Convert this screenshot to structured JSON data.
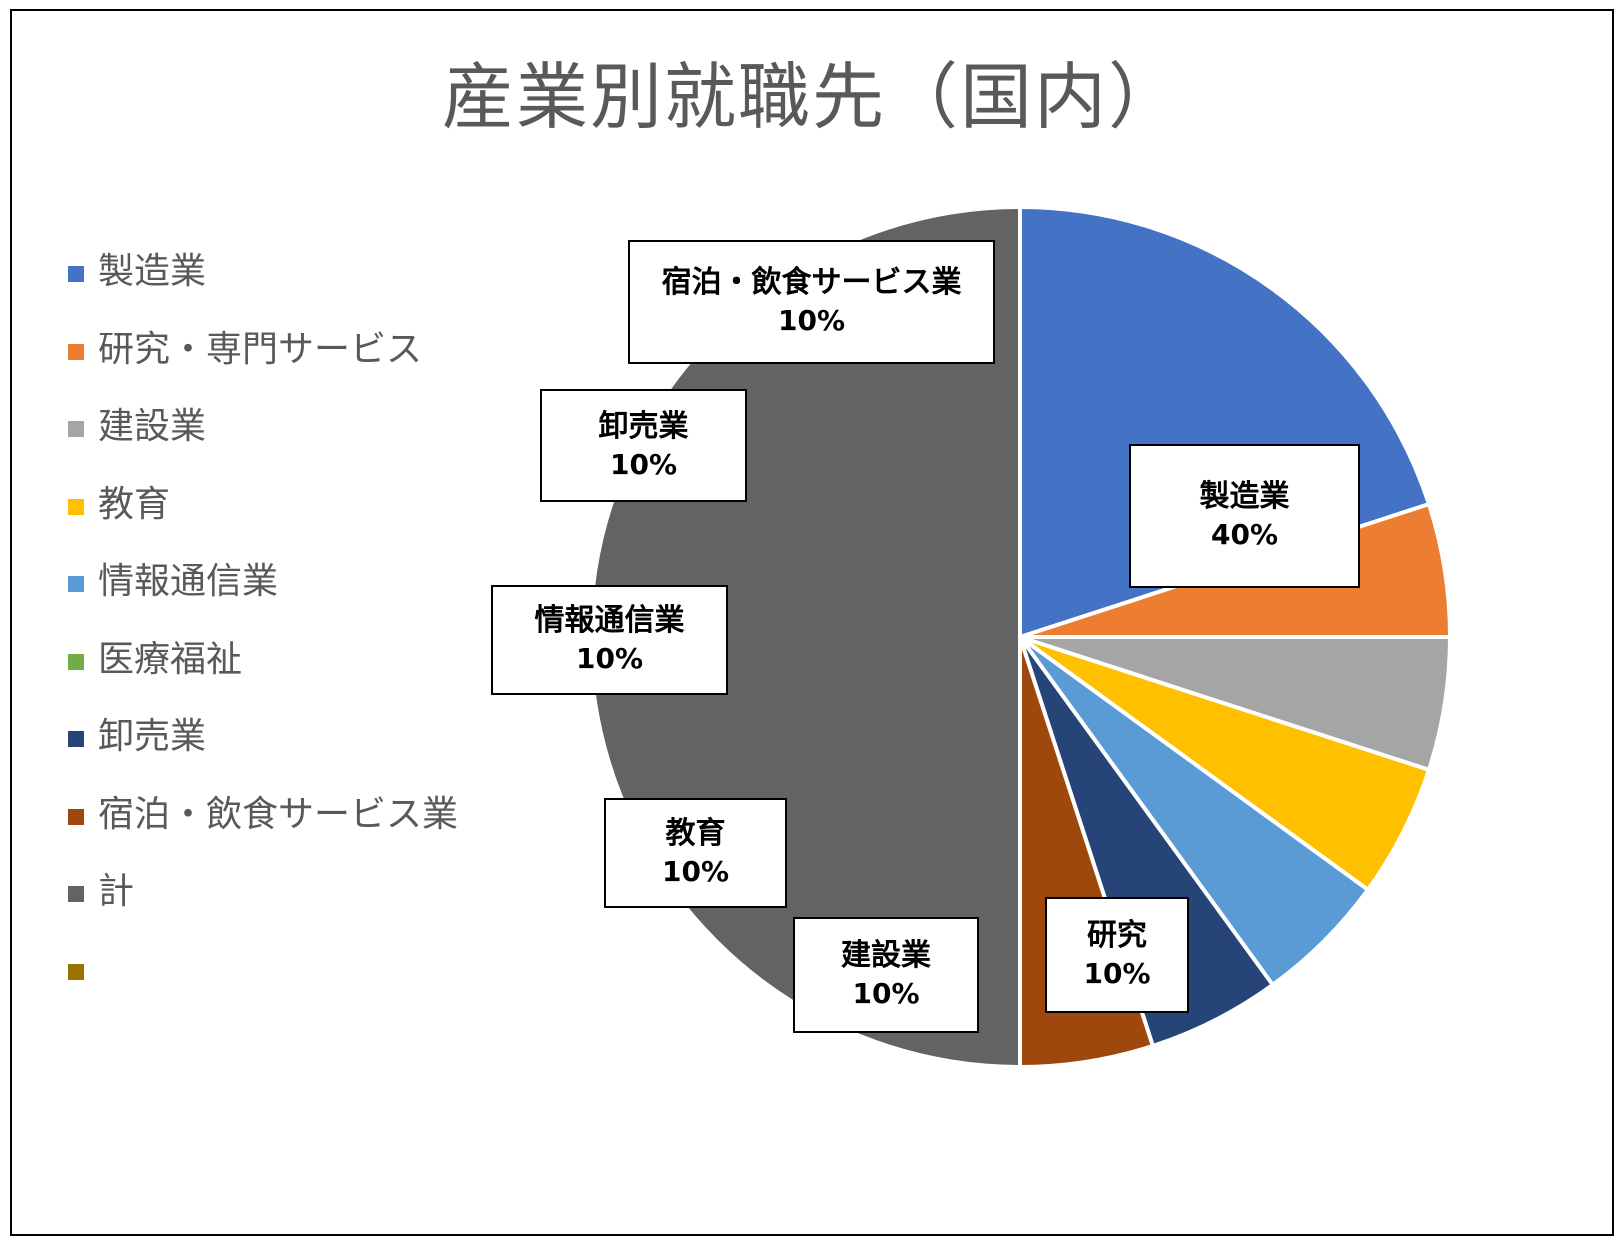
{
  "chart_data": {
    "type": "pie",
    "title": "産業別就職先（国内）",
    "legend_position": "left",
    "series": [
      {
        "name": "製造業",
        "value": 4,
        "color": "#4472C4"
      },
      {
        "name": "研究・専門サービス",
        "value": 1,
        "color": "#ED7D31"
      },
      {
        "name": "建設業",
        "value": 1,
        "color": "#A5A5A5"
      },
      {
        "name": "教育",
        "value": 1,
        "color": "#FFC000"
      },
      {
        "name": "情報通信業",
        "value": 1,
        "color": "#5B9BD5"
      },
      {
        "name": "医療福祉",
        "value": 0,
        "color": "#70AD47"
      },
      {
        "name": "卸売業",
        "value": 1,
        "color": "#264478"
      },
      {
        "name": "宿泊・飲食サービス業",
        "value": 1,
        "color": "#9E480E"
      },
      {
        "name": "計",
        "value": 10,
        "color": "#636363"
      },
      {
        "name": "",
        "value": 0,
        "color": "#997300"
      }
    ],
    "data_labels": [
      {
        "category": "製造業",
        "percent": "40%"
      },
      {
        "category": "研究",
        "percent": "10%"
      },
      {
        "category": "建設業",
        "percent": "10%"
      },
      {
        "category": "教育",
        "percent": "10%"
      },
      {
        "category": "情報通信業",
        "percent": "10%"
      },
      {
        "category": "卸売業",
        "percent": "10%"
      },
      {
        "category": "宿泊・飲食サービス業",
        "percent": "10%"
      }
    ]
  }
}
